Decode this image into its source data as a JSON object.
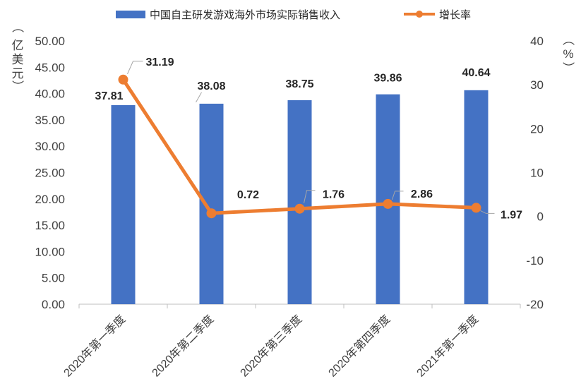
{
  "chart_data": {
    "type": "bar",
    "categories": [
      "2020年第一季度",
      "2020年第二季度",
      "2020年第三季度",
      "2020年第四季度",
      "2021年第一季度"
    ],
    "series": [
      {
        "name": "中国自主研发游戏海外市场实际销售收入",
        "type": "bar",
        "axis": "left",
        "color": "#4472C4",
        "values": [
          37.81,
          38.08,
          38.75,
          39.86,
          40.64
        ],
        "labels": [
          "37.81",
          "38.08",
          "38.75",
          "39.86",
          "40.64"
        ]
      },
      {
        "name": "增长率",
        "type": "line",
        "axis": "right",
        "color": "#ED7D31",
        "values": [
          31.19,
          0.72,
          1.76,
          2.86,
          1.97
        ],
        "labels": [
          "31.19",
          "0.72",
          "1.76",
          "2.86",
          "1.97"
        ]
      }
    ],
    "y_left": {
      "label_chars": [
        "（",
        "亿",
        "美",
        "元",
        "）"
      ],
      "range": [
        0,
        50
      ],
      "ticks": [
        "0.00",
        "5.00",
        "10.00",
        "15.00",
        "20.00",
        "25.00",
        "30.00",
        "35.00",
        "40.00",
        "45.00",
        "50.00"
      ]
    },
    "y_right": {
      "label_chars": [
        "（",
        "%",
        "）"
      ],
      "range": [
        -20,
        40
      ],
      "ticks": [
        "-20",
        "-10",
        "0",
        "10",
        "20",
        "30",
        "40"
      ]
    },
    "legend_position": "top",
    "grid": false
  }
}
